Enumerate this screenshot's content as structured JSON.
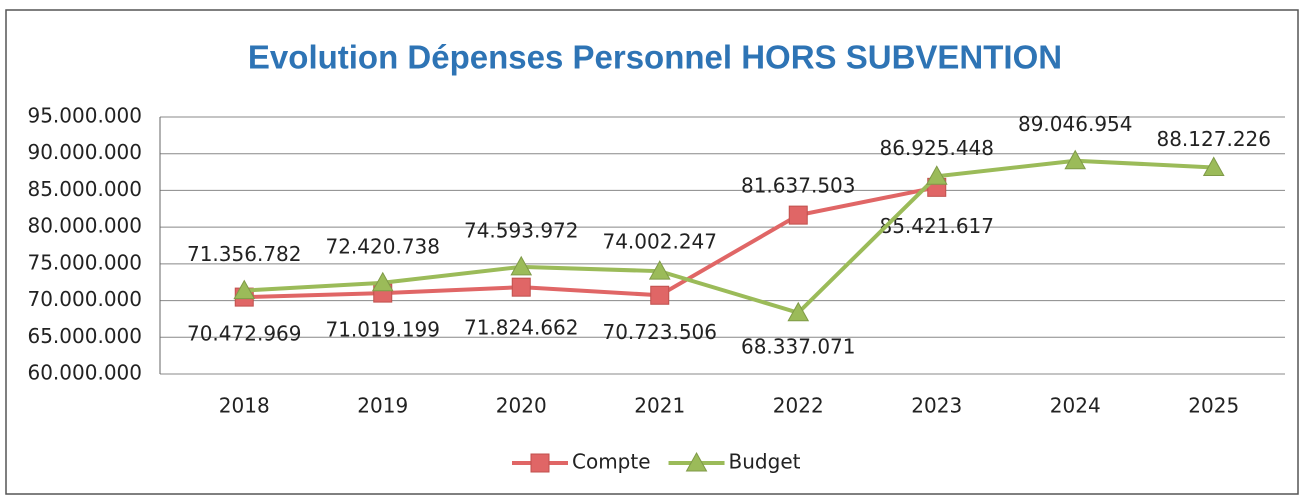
{
  "chart_data": {
    "type": "line",
    "title": "Evolution Dépenses Personnel HORS SUBVENTION",
    "categories": [
      "2018",
      "2019",
      "2020",
      "2021",
      "2022",
      "2023",
      "2024",
      "2025"
    ],
    "series": [
      {
        "name": "Compte",
        "color": "#e06666",
        "values": [
          70472969,
          71019199,
          71824662,
          70723506,
          81637503,
          85421617,
          null,
          null
        ],
        "value_labels": [
          "70.472.969",
          "71.019.199",
          "71.824.662",
          "70.723.506",
          "81.637.503",
          "85.421.617",
          null,
          null
        ]
      },
      {
        "name": "Budget",
        "color": "#9bbb59",
        "values": [
          71356782,
          72420738,
          74593972,
          74002247,
          68337071,
          86925448,
          89046954,
          88127226
        ],
        "value_labels": [
          "71.356.782",
          "72.420.738",
          "74.593.972",
          "74.002.247",
          "68.337.071",
          "86.925.448",
          "89.046.954",
          "88.127.226"
        ]
      }
    ],
    "ylim": [
      60000000,
      95000000
    ],
    "yticks": [
      {
        "value": 60000000,
        "label": "60.000.000"
      },
      {
        "value": 65000000,
        "label": "65.000.000"
      },
      {
        "value": 70000000,
        "label": "70.000.000"
      },
      {
        "value": 75000000,
        "label": "75.000.000"
      },
      {
        "value": 80000000,
        "label": "80.000.000"
      },
      {
        "value": 85000000,
        "label": "85.000.000"
      },
      {
        "value": 90000000,
        "label": "90.000.000"
      },
      {
        "value": 95000000,
        "label": "95.000.000"
      }
    ],
    "grid": true,
    "legend": "bottom"
  }
}
